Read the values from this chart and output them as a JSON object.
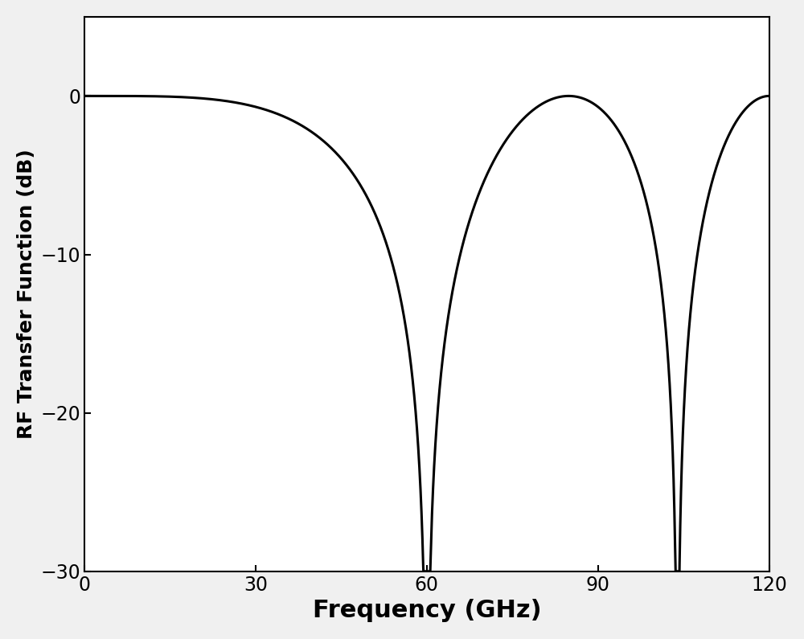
{
  "xlabel": "Frequency (GHz)",
  "ylabel": "RF Transfer Function (dB)",
  "xlim": [
    0,
    120
  ],
  "ylim": [
    -30,
    5
  ],
  "yticks": [
    -30,
    -20,
    -10,
    0
  ],
  "xticks": [
    0,
    30,
    60,
    90,
    120
  ],
  "null1_GHz": 60.0,
  "null2_GHz": 97.5,
  "line_color": "#000000",
  "line_width": 2.2,
  "background_color": "#f0f0f0",
  "plot_bg_color": "#ffffff",
  "xlabel_fontsize": 22,
  "ylabel_fontsize": 18,
  "tick_fontsize": 17,
  "xlabel_fontweight": "bold",
  "ylabel_fontweight": "bold"
}
